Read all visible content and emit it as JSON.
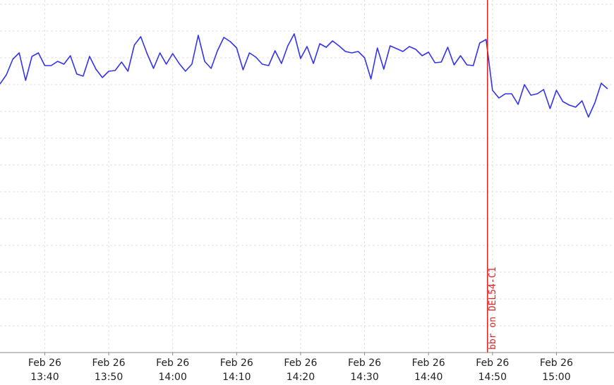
{
  "chart_data": {
    "type": "line",
    "title": "",
    "xlabel": "",
    "ylabel": "",
    "x_ticks": [
      {
        "date": "Feb 26",
        "time": "13:40",
        "t": "13:40"
      },
      {
        "date": "Feb 26",
        "time": "13:50",
        "t": "13:50"
      },
      {
        "date": "Feb 26",
        "time": "14:00",
        "t": "14:00"
      },
      {
        "date": "Feb 26",
        "time": "14:10",
        "t": "14:10"
      },
      {
        "date": "Feb 26",
        "time": "14:20",
        "t": "14:20"
      },
      {
        "date": "Feb 26",
        "time": "14:30",
        "t": "14:30"
      },
      {
        "date": "Feb 26",
        "time": "14:40",
        "t": "14:40"
      },
      {
        "date": "Feb 26",
        "time": "14:50",
        "t": "14:50"
      },
      {
        "date": "Feb 26",
        "time": "15:00",
        "t": "15:00"
      }
    ],
    "xlim": [
      "13:33",
      "15:09"
    ],
    "grid": true,
    "series": [
      {
        "color": "#3333ee",
        "x": [
          "13:33",
          "13:34",
          "13:35",
          "13:36",
          "13:37",
          "13:38",
          "13:39",
          "13:40",
          "13:41",
          "13:42",
          "13:43",
          "13:44",
          "13:45",
          "13:46",
          "13:47",
          "13:48",
          "13:49",
          "13:50",
          "13:51",
          "13:52",
          "13:53",
          "13:54",
          "13:55",
          "13:56",
          "13:57",
          "13:58",
          "13:59",
          "14:00",
          "14:01",
          "14:02",
          "14:03",
          "14:04",
          "14:05",
          "14:06",
          "14:07",
          "14:08",
          "14:09",
          "14:10",
          "14:11",
          "14:12",
          "14:13",
          "14:14",
          "14:15",
          "14:16",
          "14:17",
          "14:18",
          "14:19",
          "14:20",
          "14:21",
          "14:22",
          "14:23",
          "14:24",
          "14:25",
          "14:26",
          "14:27",
          "14:28",
          "14:29",
          "14:30",
          "14:31",
          "14:32",
          "14:33",
          "14:34",
          "14:35",
          "14:36",
          "14:37",
          "14:38",
          "14:39",
          "14:40",
          "14:41",
          "14:42",
          "14:43",
          "14:44",
          "14:45",
          "14:46",
          "14:47",
          "14:48",
          "14:49",
          "14:50",
          "14:51",
          "14:52",
          "14:53",
          "14:54",
          "14:55",
          "14:56",
          "14:57",
          "14:58",
          "14:59",
          "15:00",
          "15:01",
          "15:02",
          "15:03",
          "15:04",
          "15:05",
          "15:06",
          "15:07",
          "15:08"
        ],
        "values": [
          119,
          106,
          84,
          75,
          114,
          80,
          75,
          93,
          93,
          87,
          91,
          79,
          105,
          108,
          80,
          98,
          110,
          101,
          100,
          88,
          101,
          64,
          52,
          76,
          97,
          75,
          91,
          76,
          90,
          101,
          91,
          50,
          87,
          97,
          72,
          53,
          59,
          68,
          99,
          75,
          81,
          91,
          93,
          72,
          90,
          65,
          48,
          83,
          66,
          90,
          62,
          67,
          58,
          65,
          73,
          75,
          73,
          82,
          112,
          68,
          98,
          65,
          69,
          73,
          66,
          70,
          79,
          74,
          89,
          88,
          67,
          92,
          79,
          92,
          93,
          61,
          56,
          128,
          139,
          133,
          133,
          148,
          120,
          135,
          133,
          127,
          154,
          128,
          144,
          149,
          152,
          143,
          166,
          146,
          118,
          126
        ]
      }
    ],
    "ylim": [
      500,
      0
    ],
    "annotations": [
      {
        "x": "14:49",
        "label": "bbr on DEL54-C1",
        "color": "#dd2222"
      }
    ]
  }
}
